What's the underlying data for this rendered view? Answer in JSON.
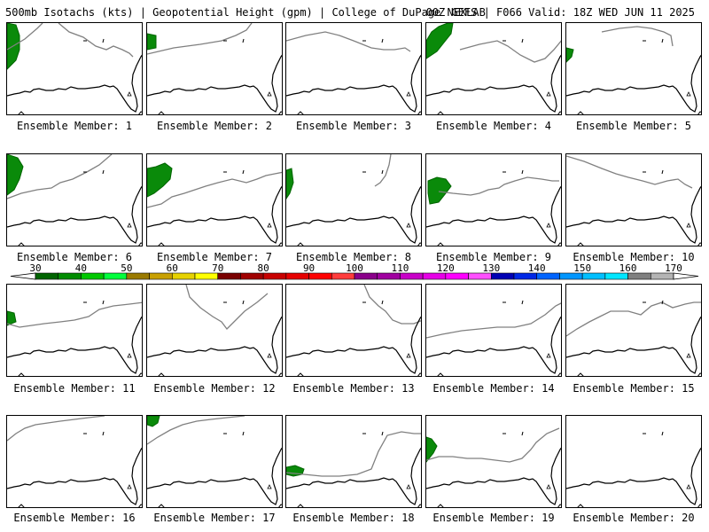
{
  "header": {
    "title_left": "500mb Isotachs (kts) | Geopotential Height (gpm) | College of DuPage NEXLAB",
    "title_right": "00Z GEFS | F066 Valid: 18Z WED JUN 11 2025"
  },
  "colorbar": {
    "labels": [
      "30",
      "40",
      "50",
      "60",
      "70",
      "80",
      "90",
      "100",
      "110",
      "120",
      "130",
      "140",
      "150",
      "160",
      "170"
    ],
    "colors": [
      "#006400",
      "#008c00",
      "#00c800",
      "#00ff3c",
      "#9a7a00",
      "#c8a000",
      "#e6d200",
      "#ffff00",
      "#7a0000",
      "#a00000",
      "#c80000",
      "#e60000",
      "#ff0000",
      "#ff3c3c",
      "#8a008a",
      "#a000a0",
      "#c800c8",
      "#e600e6",
      "#ff00ff",
      "#ff50ff",
      "#0000b4",
      "#0028e6",
      "#0064ff",
      "#0096ff",
      "#00bfff",
      "#00e6ff",
      "#808080",
      "#b4b4b4"
    ]
  },
  "panels": [
    {
      "label": "Ensemble Member: 1"
    },
    {
      "label": "Ensemble Member: 2"
    },
    {
      "label": "Ensemble Member: 3"
    },
    {
      "label": "Ensemble Member: 4"
    },
    {
      "label": "Ensemble Member: 5"
    },
    {
      "label": "Ensemble Member: 6"
    },
    {
      "label": "Ensemble Member: 7"
    },
    {
      "label": "Ensemble Member: 8"
    },
    {
      "label": "Ensemble Member: 9"
    },
    {
      "label": "Ensemble Member: 10"
    },
    {
      "label": "Ensemble Member: 11"
    },
    {
      "label": "Ensemble Member: 12"
    },
    {
      "label": "Ensemble Member: 13"
    },
    {
      "label": "Ensemble Member: 14"
    },
    {
      "label": "Ensemble Member: 15"
    },
    {
      "label": "Ensemble Member: 16"
    },
    {
      "label": "Ensemble Member: 17"
    },
    {
      "label": "Ensemble Member: 18"
    },
    {
      "label": "Ensemble Member: 19"
    },
    {
      "label": "Ensemble Member: 20"
    }
  ]
}
